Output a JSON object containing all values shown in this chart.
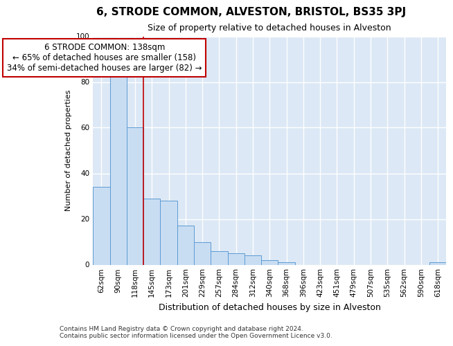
{
  "title": "6, STRODE COMMON, ALVESTON, BRISTOL, BS35 3PJ",
  "subtitle": "Size of property relative to detached houses in Alveston",
  "xlabel": "Distribution of detached houses by size in Alveston",
  "ylabel": "Number of detached properties",
  "footer": "Contains HM Land Registry data © Crown copyright and database right 2024.\nContains public sector information licensed under the Open Government Licence v3.0.",
  "categories": [
    "62sqm",
    "90sqm",
    "118sqm",
    "145sqm",
    "173sqm",
    "201sqm",
    "229sqm",
    "257sqm",
    "284sqm",
    "312sqm",
    "340sqm",
    "368sqm",
    "396sqm",
    "423sqm",
    "451sqm",
    "479sqm",
    "507sqm",
    "535sqm",
    "562sqm",
    "590sqm",
    "618sqm"
  ],
  "values": [
    34,
    84,
    60,
    29,
    28,
    17,
    10,
    6,
    5,
    4,
    2,
    1,
    0,
    0,
    0,
    0,
    0,
    0,
    0,
    0,
    1
  ],
  "bar_color": "#c9ddf2",
  "bar_edgecolor": "#5b9bd5",
  "vline_color": "#c00000",
  "vline_xindex": 3,
  "annotation_line1": "6 STRODE COMMON: 138sqm",
  "annotation_line2": "← 65% of detached houses are smaller (158)",
  "annotation_line3": "34% of semi-detached houses are larger (82) →",
  "annotation_box_edgecolor": "#c00000",
  "annotation_fontsize": 8.5,
  "ylim": [
    0,
    100
  ],
  "yticks": [
    0,
    20,
    40,
    60,
    80,
    100
  ],
  "plot_bg_color": "#dce8f5",
  "grid_color": "#ffffff",
  "title_fontsize": 11,
  "subtitle_fontsize": 9,
  "ylabel_fontsize": 8,
  "xlabel_fontsize": 9,
  "tick_fontsize": 7.5,
  "footer_fontsize": 6.5
}
